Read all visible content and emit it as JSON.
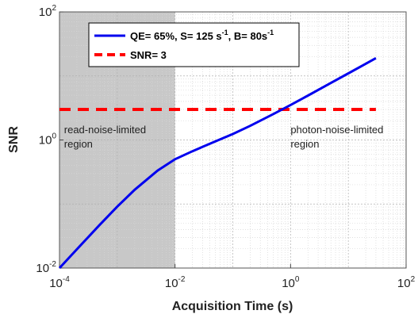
{
  "chart_data": {
    "type": "line",
    "xscale": "log",
    "yscale": "log",
    "xlim": [
      0.0001,
      100
    ],
    "ylim": [
      0.01,
      100
    ],
    "xlabel": "Acquisition Time (s)",
    "ylabel": "SNR",
    "grid": true,
    "legend_position": "top-left",
    "x_ticks": [
      {
        "base": "10",
        "exp": "-4",
        "value": 0.0001
      },
      {
        "base": "10",
        "exp": "-2",
        "value": 0.01
      },
      {
        "base": "10",
        "exp": "0",
        "value": 1
      },
      {
        "base": "10",
        "exp": "2",
        "value": 100
      }
    ],
    "y_ticks": [
      {
        "base": "10",
        "exp": "-2",
        "value": 0.01
      },
      {
        "base": "10",
        "exp": "0",
        "value": 1
      },
      {
        "base": "10",
        "exp": "2",
        "value": 100
      }
    ],
    "shaded_region": {
      "x_range": [
        0.0001,
        0.01
      ],
      "color": "#c8c8c8"
    },
    "annotations": [
      {
        "id": "read",
        "text_line1": "read-noise-limited",
        "text_line2": "region",
        "x": 0.00012,
        "y": 1.2
      },
      {
        "id": "photon",
        "text_line1": "photon-noise-limited",
        "text_line2": "region",
        "x": 1.0,
        "y": 1.2
      }
    ],
    "series": [
      {
        "name_main": "QE= 65%, S= 125 s",
        "name_sup1": "-1",
        "name_mid": ", B= 80s",
        "name_sup2": "-1",
        "color": "#0000ee",
        "style": "solid",
        "x": [
          0.0001,
          0.0002,
          0.0005,
          0.001,
          0.002,
          0.005,
          0.01,
          0.02,
          0.05,
          0.1,
          0.2,
          0.5,
          1,
          2,
          5,
          10,
          20,
          30
        ],
        "y": [
          0.01,
          0.0196,
          0.0476,
          0.0909,
          0.167,
          0.333,
          0.5,
          0.667,
          0.952,
          1.24,
          1.66,
          2.53,
          3.52,
          4.94,
          7.76,
          10.96,
          15.48,
          18.96
        ]
      },
      {
        "name": "SNR= 3",
        "color": "#ff0000",
        "style": "dashed",
        "x": [
          0.0001,
          30
        ],
        "y": [
          3,
          3
        ]
      }
    ]
  }
}
